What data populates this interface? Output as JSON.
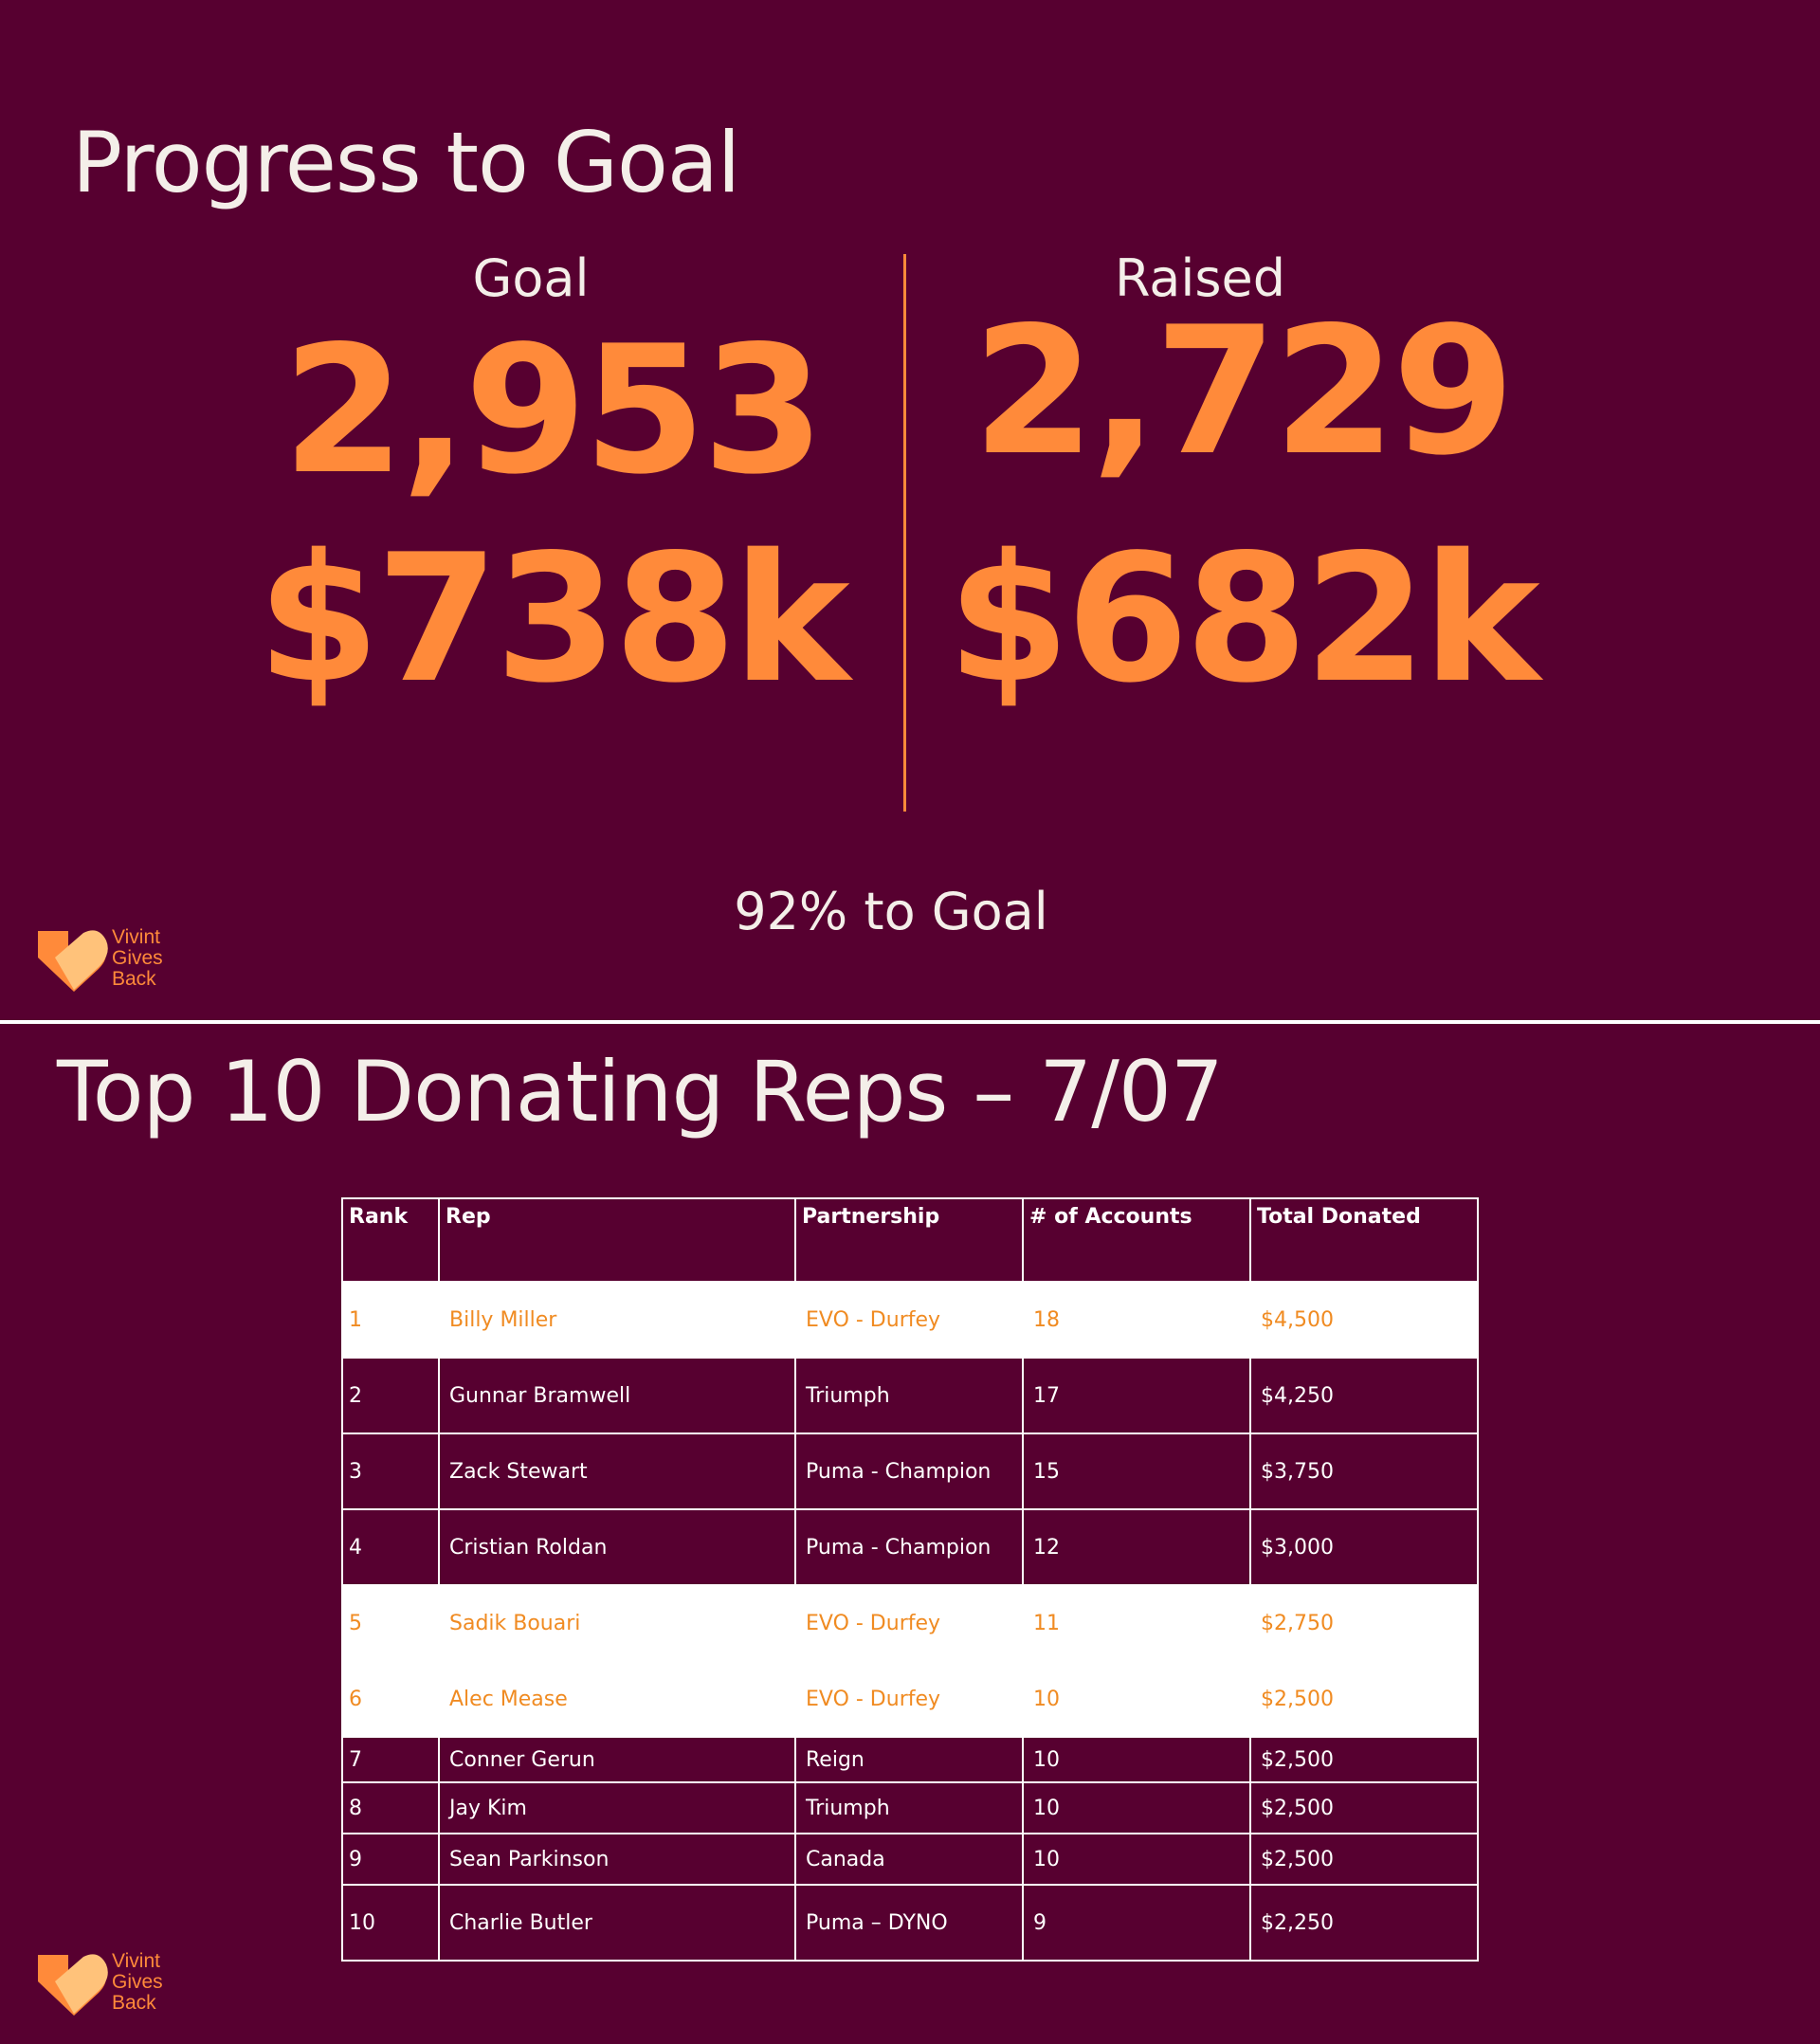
{
  "progress": {
    "title": "Progress to Goal",
    "goal": {
      "label": "Goal",
      "count": "2,953",
      "amount": "$738k"
    },
    "raised": {
      "label": "Raised",
      "count": "2,729",
      "amount": "$682k"
    },
    "percent_text": "92% to Goal",
    "percent_value": 92
  },
  "logo": {
    "line1": "Vivint",
    "line2": "Gives",
    "line3": "Back"
  },
  "leaderboard": {
    "title": "Top 10 Donating Reps – 7/07",
    "headers": [
      "Rank",
      "Rep",
      "Partnership",
      "# of Accounts",
      "Total Donated"
    ],
    "rows": [
      {
        "rank": "1",
        "rep": "Billy Miller",
        "partnership": "EVO - Durfey",
        "accounts": "18",
        "total": "$4,500",
        "highlight": true
      },
      {
        "rank": "2",
        "rep": "Gunnar Bramwell",
        "partnership": "Triumph",
        "accounts": "17",
        "total": "$4,250",
        "highlight": false
      },
      {
        "rank": "3",
        "rep": "Zack Stewart",
        "partnership": "Puma - Champion",
        "accounts": "15",
        "total": "$3,750",
        "highlight": false
      },
      {
        "rank": "4",
        "rep": "Cristian Roldan",
        "partnership": "Puma - Champion",
        "accounts": "12",
        "total": "$3,000",
        "highlight": false
      },
      {
        "rank": "5",
        "rep": "Sadik Bouari",
        "partnership": "EVO - Durfey",
        "accounts": "11",
        "total": "$2,750",
        "highlight": true
      },
      {
        "rank": "6",
        "rep": "Alec Mease",
        "partnership": "EVO - Durfey",
        "accounts": "10",
        "total": "$2,500",
        "highlight": true
      },
      {
        "rank": "7",
        "rep": "Conner Gerun",
        "partnership": "Reign",
        "accounts": "10",
        "total": "$2,500",
        "highlight": false
      },
      {
        "rank": "8",
        "rep": "Jay Kim",
        "partnership": "Triumph",
        "accounts": "10",
        "total": "$2,500",
        "highlight": false
      },
      {
        "rank": "9",
        "rep": "Sean Parkinson",
        "partnership": "Canada",
        "accounts": "10",
        "total": "$2,500",
        "highlight": false
      },
      {
        "rank": "10",
        "rep": "Charlie Butler",
        "partnership": "Puma – DYNO",
        "accounts": "9",
        "total": "$2,250",
        "highlight": false
      }
    ]
  },
  "colors": {
    "background": "#570030",
    "accent": "#ff8a3a",
    "text": "#f4efe9",
    "highlight_text": "#f08b22"
  }
}
